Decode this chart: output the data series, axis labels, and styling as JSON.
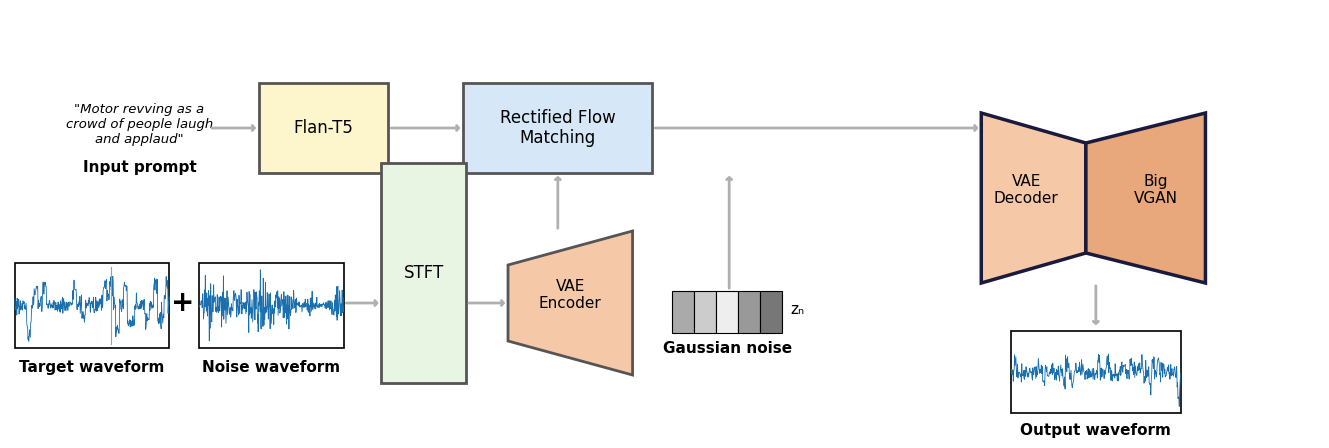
{
  "bg_color": "#ffffff",
  "waveform_color": "#1a6faf",
  "waveform_color2": "#2196F3",
  "arrow_color": "#b0b0b0",
  "flan_box_color": "#fdf5cc",
  "flan_box_edge": "#555555",
  "rfm_box_color": "#d6e8f7",
  "rfm_box_edge": "#555555",
  "stft_box_color": "#e8f5e2",
  "stft_box_edge": "#555555",
  "vae_enc_color": "#f5c8a8",
  "vae_dec_color": "#f5c8a8",
  "big_vgan_color": "#e8a87c",
  "noise_colors": [
    "#aaaaaa",
    "#cccccc",
    "#eeeeee",
    "#999999",
    "#777777"
  ],
  "dark_border": "#1a1a3e",
  "label_fontsize": 11,
  "title_fontsize": 12,
  "prompt_text": "\"Motor revving as a\ncrowd of people laugh\nand applaud\"",
  "prompt_label": "Input prompt",
  "flan_label": "Flan-T5",
  "rfm_label": "Rectified Flow\nMatching",
  "stft_label": "STFT",
  "vae_enc_label": "VAE\nEncoder",
  "vae_dec_label": "VAE\nDecoder",
  "big_vgan_label": "Big\nVGAN",
  "gaussian_label": "Gaussian noise",
  "zn_label": "zₙ",
  "target_wf_label": "Target waveform",
  "noise_wf_label": "Noise waveform",
  "output_wf_label": "Output waveform"
}
